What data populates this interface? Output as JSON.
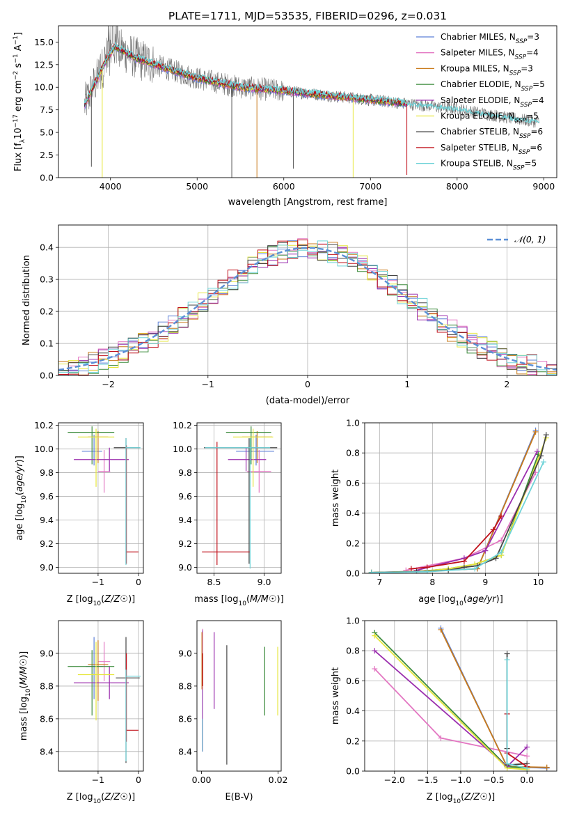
{
  "figure": {
    "title": "PLATE=1711, MJD=53535, FIBERID=0296, z=0.031"
  },
  "models": [
    {
      "name": "Chabrier MILES",
      "nssp": "3",
      "color": "#5b7fd6"
    },
    {
      "name": "Salpeter MILES",
      "nssp": "4",
      "color": "#e377c2"
    },
    {
      "name": "Kroupa MILES",
      "nssp": "3",
      "color": "#c97a1a"
    },
    {
      "name": "Chabrier ELODIE",
      "nssp": "5",
      "color": "#3a8a3a"
    },
    {
      "name": "Salpeter ELODIE",
      "nssp": "4",
      "color": "#9b2fae"
    },
    {
      "name": "Kroupa ELODIE",
      "nssp": "5",
      "color": "#e6e63c"
    },
    {
      "name": "Chabrier STELIB",
      "nssp": "6",
      "color": "#444444"
    },
    {
      "name": "Salpeter STELIB",
      "nssp": "6",
      "color": "#c0101a"
    },
    {
      "name": "Kroupa STELIB",
      "nssp": "5",
      "color": "#6fd3d8"
    }
  ],
  "chart_data": [
    {
      "id": "spectrum",
      "type": "line",
      "xlabel": "wavelength [Angstrom, rest frame]",
      "ylabel": "Flux [f_λ 10^-17 erg cm^-2 s^-1 A^-1]",
      "xlim": [
        3400,
        9150
      ],
      "ylim": [
        0,
        16.8
      ],
      "xticks": [
        4000,
        5000,
        6000,
        7000,
        8000,
        9000
      ],
      "yticks": [
        0.0,
        2.5,
        5.0,
        7.5,
        10.0,
        12.5,
        15.0
      ],
      "legend_position": "top-right",
      "continuum": {
        "x": [
          3700,
          3800,
          3950,
          4050,
          4300,
          4600,
          5000,
          5500,
          6000,
          6500,
          7000,
          7400,
          7700,
          8000,
          8300,
          8600,
          8900
        ],
        "y": [
          8.0,
          10.0,
          13.0,
          14.5,
          13.2,
          12.2,
          11.0,
          10.0,
          9.6,
          9.1,
          8.6,
          8.2,
          7.9,
          7.6,
          7.1,
          6.6,
          6.2
        ]
      },
      "observed_range": [
        3700,
        8950
      ],
      "model_range": [
        3700,
        7420
      ],
      "spikes": [
        {
          "x": 3780,
          "to": 1.2
        },
        {
          "x": 3905,
          "to": 0.0
        },
        {
          "x": 5400,
          "to": 0.0
        },
        {
          "x": 5690,
          "to": 0.0
        },
        {
          "x": 6110,
          "to": 1.0
        },
        {
          "x": 6800,
          "to": 0.0
        },
        {
          "x": 7420,
          "to": 0.3
        }
      ]
    },
    {
      "id": "residuals",
      "type": "line",
      "xlabel": "(data-model)/error",
      "ylabel": "Normed distribution",
      "xlim": [
        -2.5,
        2.5
      ],
      "ylim": [
        0,
        0.47
      ],
      "xticks": [
        -2,
        -1,
        0,
        1,
        2
      ],
      "yticks": [
        0.0,
        0.1,
        0.2,
        0.3,
        0.4
      ],
      "grid": true,
      "series": [
        {
          "name": "𝒩(0, 1)",
          "distribution": "normal",
          "mean": 0,
          "sd": 1
        }
      ],
      "legend_position": "top-right"
    },
    {
      "id": "age-vs-z",
      "type": "scatter",
      "xlabel": "Z [log10(Z/Z☉)]",
      "ylabel": "age [log10(age/yr)]",
      "xlim": [
        -1.98,
        0.12
      ],
      "ylim": [
        8.95,
        10.22
      ],
      "xticks": [
        -1,
        0
      ],
      "yticks": [
        9.0,
        9.2,
        9.4,
        9.6,
        9.8,
        10.0,
        10.2
      ],
      "grid": true,
      "points": [
        {
          "x": -1.1,
          "xerr": [
            0.3,
            0.2
          ],
          "y": 9.98,
          "yerr": [
            0.12,
            0.14
          ]
        },
        {
          "x": -0.85,
          "xerr": [
            0.15,
            0.15
          ],
          "y": 9.81,
          "yerr": [
            0.18,
            0.18
          ]
        },
        {
          "x": -1.0,
          "xerr": [
            0.25,
            0.25
          ],
          "y": 10.1,
          "yerr": [
            0.22,
            0.05
          ]
        },
        {
          "x": -1.15,
          "xerr": [
            0.6,
            0.55
          ],
          "y": 10.14,
          "yerr": [
            0.27,
            0.05
          ]
        },
        {
          "x": -0.72,
          "xerr": [
            0.88,
            0.48
          ],
          "y": 9.91,
          "yerr": [
            0.1,
            0.1
          ]
        },
        {
          "x": -1.05,
          "xerr": [
            0.45,
            0.45
          ],
          "y": 10.1,
          "yerr": [
            0.42,
            0.07
          ]
        },
        {
          "x": -0.31,
          "xerr": [
            0.3,
            0.34
          ],
          "y": 10.01,
          "yerr": [
            0.98,
            0.08
          ]
        },
        {
          "x": -0.3,
          "xerr": [
            0.0,
            0.3
          ],
          "y": 9.13,
          "yerr": [
            0.1,
            0.9
          ]
        },
        {
          "x": -0.31,
          "xerr": [
            0.0,
            0.36
          ],
          "y": 10.01,
          "yerr": [
            0.99,
            0.08
          ]
        }
      ]
    },
    {
      "id": "age-vs-mass",
      "type": "scatter",
      "xlabel": "mass [log10(M/M☉)]",
      "ylabel": "",
      "xlim": [
        8.33,
        9.17
      ],
      "ylim": [
        8.95,
        10.22
      ],
      "xticks": [
        8.5,
        9.0
      ],
      "yticks": [
        9.0,
        9.2,
        9.4,
        9.6,
        9.8,
        10.0,
        10.2
      ],
      "grid": true,
      "points": [
        {
          "x": 8.92,
          "xerr": [
            0.2,
            0.18
          ],
          "y": 9.98,
          "yerr": [
            0.12,
            0.14
          ]
        },
        {
          "x": 8.95,
          "xerr": [
            0.12,
            0.12
          ],
          "y": 9.81,
          "yerr": [
            0.18,
            0.18
          ]
        },
        {
          "x": 8.93,
          "xerr": [
            0.15,
            0.15
          ],
          "y": 10.1,
          "yerr": [
            0.22,
            0.05
          ]
        },
        {
          "x": 8.87,
          "xerr": [
            0.25,
            0.2
          ],
          "y": 10.14,
          "yerr": [
            0.27,
            0.05
          ]
        },
        {
          "x": 8.82,
          "xerr": [
            0.18,
            0.2
          ],
          "y": 9.91,
          "yerr": [
            0.1,
            0.1
          ]
        },
        {
          "x": 8.89,
          "xerr": [
            0.2,
            0.2
          ],
          "y": 10.1,
          "yerr": [
            0.42,
            0.07
          ]
        },
        {
          "x": 8.85,
          "xerr": [
            0.45,
            0.28
          ],
          "y": 10.01,
          "yerr": [
            0.98,
            0.08
          ]
        },
        {
          "x": 8.53,
          "xerr": [
            0.15,
            0.33
          ],
          "y": 9.13,
          "yerr": [
            0.11,
            0.93
          ]
        },
        {
          "x": 8.86,
          "xerr": [
            0.45,
            0.2
          ],
          "y": 10.01,
          "yerr": [
            1.02,
            0.08
          ]
        }
      ]
    },
    {
      "id": "mass-weight-vs-age",
      "type": "line",
      "xlabel": "age [log10(age/yr)]",
      "ylabel": "mass weight",
      "xlim": [
        6.72,
        10.35
      ],
      "ylim": [
        0,
        1.0
      ],
      "xticks": [
        7,
        8,
        9,
        10
      ],
      "yticks": [
        0.0,
        0.2,
        0.4,
        0.6,
        0.8,
        1.0
      ],
      "grid": true,
      "series": [
        {
          "x": [
            6.85,
            7.9,
            8.85,
            9.95
          ],
          "y": [
            0.005,
            0.015,
            0.03,
            0.95
          ]
        },
        {
          "x": [
            7.5,
            8.6,
            9.3,
            9.95
          ],
          "y": [
            0.02,
            0.1,
            0.22,
            0.67
          ]
        },
        {
          "x": [
            6.85,
            7.9,
            8.85,
            9.95
          ],
          "y": [
            0.005,
            0.015,
            0.03,
            0.94
          ]
        },
        {
          "x": [
            6.85,
            7.7,
            8.3,
            8.8,
            9.3,
            10.0
          ],
          "y": [
            0.005,
            0.01,
            0.03,
            0.06,
            0.12,
            0.79
          ]
        },
        {
          "x": [
            7.7,
            8.6,
            9.0,
            9.98
          ],
          "y": [
            0.02,
            0.1,
            0.15,
            0.81
          ]
        },
        {
          "x": [
            6.85,
            7.7,
            8.3,
            8.8,
            9.3,
            10.15
          ],
          "y": [
            0.005,
            0.01,
            0.03,
            0.06,
            0.12,
            0.9
          ]
        },
        {
          "x": [
            6.85,
            7.7,
            8.3,
            8.6,
            8.85,
            9.2,
            10.05,
            10.15
          ],
          "y": [
            0.005,
            0.01,
            0.02,
            0.04,
            0.05,
            0.1,
            0.78,
            0.92
          ]
        },
        {
          "x": [
            7.6,
            7.9,
            8.6,
            9.15,
            9.3
          ],
          "y": [
            0.03,
            0.04,
            0.08,
            0.29,
            0.38
          ]
        },
        {
          "x": [
            6.85,
            7.9,
            8.8,
            9.3,
            10.1
          ],
          "y": [
            0.005,
            0.01,
            0.03,
            0.14,
            0.74
          ]
        }
      ]
    },
    {
      "id": "mass-vs-z",
      "type": "scatter",
      "xlabel": "Z [log10(Z/Z☉)]",
      "ylabel": "mass [log10(M/M☉)]",
      "xlim": [
        -1.98,
        0.12
      ],
      "ylim": [
        8.28,
        9.2
      ],
      "xticks": [
        -1,
        0
      ],
      "yticks": [
        8.4,
        8.6,
        8.8,
        9.0
      ],
      "grid": true,
      "points": [
        {
          "x": -1.1,
          "xerr": [
            0.2,
            0.22
          ],
          "y": 8.92,
          "yerr": [
            0.2,
            0.18
          ]
        },
        {
          "x": -0.85,
          "xerr": [
            0.15,
            0.15
          ],
          "y": 8.95,
          "yerr": [
            0.12,
            0.12
          ]
        },
        {
          "x": -1.0,
          "xerr": [
            0.25,
            0.25
          ],
          "y": 8.93,
          "yerr": [
            0.22,
            0.15
          ]
        },
        {
          "x": -1.15,
          "xerr": [
            0.6,
            0.55
          ],
          "y": 8.92,
          "yerr": [
            0.3,
            0.1
          ]
        },
        {
          "x": -0.72,
          "xerr": [
            0.88,
            0.48
          ],
          "y": 8.82,
          "yerr": [
            0.1,
            0.1
          ]
        },
        {
          "x": -1.05,
          "xerr": [
            0.45,
            0.45
          ],
          "y": 8.87,
          "yerr": [
            0.28,
            0.2
          ]
        },
        {
          "x": -0.31,
          "xerr": [
            0.25,
            0.34
          ],
          "y": 8.85,
          "yerr": [
            0.52,
            0.25
          ]
        },
        {
          "x": -0.3,
          "xerr": [
            0.0,
            0.3
          ],
          "y": 8.53,
          "yerr": [
            0.07,
            0.47
          ]
        },
        {
          "x": -0.31,
          "xerr": [
            0.0,
            0.36
          ],
          "y": 8.86,
          "yerr": [
            0.52,
            0.04
          ]
        }
      ]
    },
    {
      "id": "mass-vs-ebv",
      "type": "scatter",
      "xlabel": "E(B-V)",
      "ylabel": "",
      "xlim": [
        -0.0012,
        0.0208
      ],
      "ylim": [
        8.28,
        9.2
      ],
      "xticks": [
        0.0,
        0.02
      ],
      "yticks": [
        8.4,
        8.6,
        8.8,
        9.0
      ],
      "grid": false,
      "points": [
        {
          "x": 0.0002,
          "y": 8.9,
          "yerr": [
            0.5,
            0.24
          ]
        },
        {
          "x": 0.0003,
          "y": 8.95,
          "yerr": [
            0.55,
            0.2
          ]
        },
        {
          "x": 0.0001,
          "y": 8.93,
          "yerr": [
            0.15,
            0.2
          ]
        },
        {
          "x": 0.0165,
          "y": 8.82,
          "yerr": [
            0.2,
            0.22
          ]
        },
        {
          "x": 0.0033,
          "y": 8.91,
          "yerr": [
            0.25,
            0.22
          ]
        },
        {
          "x": 0.0199,
          "y": 8.82,
          "yerr": [
            0.2,
            0.22
          ]
        },
        {
          "x": 0.0066,
          "y": 8.7,
          "yerr": [
            0.38,
            0.35
          ]
        },
        {
          "x": 0.0003,
          "y": 8.9,
          "yerr": [
            0.1,
            0.1
          ]
        },
        {
          "x": 0.0002,
          "y": 8.45,
          "yerr": [
            0.05,
            0.15
          ]
        }
      ]
    },
    {
      "id": "mass-weight-vs-z",
      "type": "line",
      "xlabel": "Z [log10(Z/Z☉)]",
      "ylabel": "mass weight",
      "xlim": [
        -2.45,
        0.45
      ],
      "ylim": [
        0,
        1.0
      ],
      "xticks": [
        -2.0,
        -1.5,
        -1.0,
        -0.5,
        0.0
      ],
      "yticks": [
        0.0,
        0.2,
        0.4,
        0.6,
        0.8,
        1.0
      ],
      "grid": true,
      "series": [
        {
          "x": [
            -1.3,
            -0.3,
            0.3
          ],
          "y": [
            0.95,
            0.03,
            0.02
          ]
        },
        {
          "x": [
            -2.3,
            -1.3,
            0.0
          ],
          "y": [
            0.68,
            0.22,
            0.1
          ]
        },
        {
          "x": [
            -1.3,
            -0.3,
            0.3
          ],
          "y": [
            0.94,
            0.03,
            0.025
          ]
        },
        {
          "x": [
            -2.3,
            -0.3,
            0.0
          ],
          "y": [
            0.92,
            0.03,
            0.02
          ]
        },
        {
          "x": [
            -2.3,
            -0.3,
            0.0
          ],
          "y": [
            0.8,
            0.03,
            0.16
          ]
        },
        {
          "x": [
            -2.3,
            -0.3,
            0.0
          ],
          "y": [
            0.9,
            0.02,
            0.01
          ]
        },
        {
          "x": [
            -0.3,
            -0.3,
            -0.3,
            -0.3,
            0.0
          ],
          "y": [
            0.78,
            0.38,
            0.15,
            0.04,
            0.05
          ]
        },
        {
          "x": [
            -0.3,
            -0.3,
            0.0
          ],
          "y": [
            0.38,
            0.12,
            0.03
          ]
        },
        {
          "x": [
            -0.3,
            -0.3,
            0.0
          ],
          "y": [
            0.74,
            0.05,
            0.02
          ]
        }
      ]
    }
  ]
}
